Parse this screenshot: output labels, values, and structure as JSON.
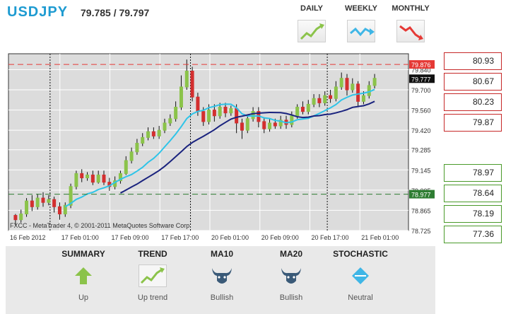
{
  "header": {
    "pair": "USDJPY",
    "price": "79.785 / 79.797"
  },
  "timeframes": [
    {
      "label": "DAILY",
      "icon": "uptrend-chart-icon",
      "color": "#8bc34a"
    },
    {
      "label": "WEEKLY",
      "icon": "sideways-trend-chart-icon",
      "color": "#3fb6e6"
    },
    {
      "label": "MONTHLY",
      "icon": "downtrend-chart-icon",
      "color": "#e53935"
    }
  ],
  "levels": {
    "resistance": [
      "80.93",
      "80.67",
      "80.23",
      "79.87"
    ],
    "support": [
      "78.97",
      "78.64",
      "78.19",
      "77.36"
    ]
  },
  "summary": [
    {
      "title": "SUMMARY",
      "value": "Up",
      "icon": "up-arrow-icon"
    },
    {
      "title": "TREND",
      "value": "Up trend",
      "icon": "uptrend-chart-icon"
    },
    {
      "title": "MA10",
      "value": "Bullish",
      "icon": "bull-icon"
    },
    {
      "title": "MA20",
      "value": "Bullish",
      "icon": "bull-icon"
    },
    {
      "title": "STOCHASTIC",
      "value": "Neutral",
      "icon": "neutral-diamond-icon"
    }
  ],
  "chart_data": {
    "type": "candlestick",
    "watermark": "FXCC - MetaTrader 4, © 2001-2011 MetaQuotes Software Corp.",
    "ylim": [
      78.725,
      79.95
    ],
    "y_ticks": [
      "79.840",
      "79.700",
      "79.560",
      "79.420",
      "79.285",
      "79.145",
      "79.005",
      "78.865",
      "78.725"
    ],
    "x_ticks": [
      "16 Feb 2012",
      "17 Feb 01:00",
      "17 Feb 09:00",
      "17 Feb 17:00",
      "20 Feb 01:00",
      "20 Feb 09:00",
      "20 Feb 17:00",
      "21 Feb 01:00"
    ],
    "resistance_line": {
      "value": 79.876,
      "label": "79.876",
      "color": "#e53935"
    },
    "support_line": {
      "value": 78.977,
      "label": "78.977",
      "color": "#2e7d32"
    },
    "current_price": {
      "value": 79.777,
      "label": "79.777"
    },
    "candles": [
      [
        78.83,
        78.8,
        78.84,
        78.76
      ],
      [
        78.8,
        78.84,
        78.87,
        78.78
      ],
      [
        78.84,
        78.93,
        78.95,
        78.82
      ],
      [
        78.93,
        78.89,
        78.97,
        78.86
      ],
      [
        78.89,
        78.95,
        78.98,
        78.87
      ],
      [
        78.95,
        78.92,
        78.99,
        78.89
      ],
      [
        78.92,
        78.94,
        78.97,
        78.9
      ],
      [
        78.94,
        78.89,
        78.96,
        78.85
      ],
      [
        78.89,
        78.84,
        78.92,
        78.8
      ],
      [
        78.84,
        78.9,
        78.92,
        78.82
      ],
      [
        78.9,
        79.03,
        79.05,
        78.88
      ],
      [
        79.03,
        79.12,
        79.14,
        79.01
      ],
      [
        79.12,
        79.09,
        79.15,
        79.06
      ],
      [
        79.09,
        79.11,
        79.13,
        79.07
      ],
      [
        79.11,
        79.06,
        79.14,
        79.04
      ],
      [
        79.06,
        79.11,
        79.14,
        79.05
      ],
      [
        79.11,
        79.06,
        79.14,
        79.04
      ],
      [
        79.06,
        79.03,
        79.09,
        79.0
      ],
      [
        79.03,
        79.07,
        79.1,
        79.01
      ],
      [
        79.07,
        79.12,
        79.14,
        79.05
      ],
      [
        79.12,
        79.21,
        79.24,
        79.11
      ],
      [
        79.21,
        79.27,
        79.3,
        79.19
      ],
      [
        79.27,
        79.33,
        79.36,
        79.25
      ],
      [
        79.33,
        79.37,
        79.4,
        79.31
      ],
      [
        79.37,
        79.41,
        79.44,
        79.35
      ],
      [
        79.41,
        79.38,
        79.44,
        79.36
      ],
      [
        79.38,
        79.42,
        79.45,
        79.36
      ],
      [
        79.42,
        79.47,
        79.5,
        79.4
      ],
      [
        79.47,
        79.5,
        79.53,
        79.45
      ],
      [
        79.5,
        79.58,
        79.62,
        79.48
      ],
      [
        79.58,
        79.72,
        79.8,
        79.56
      ],
      [
        79.72,
        79.83,
        79.91,
        79.7
      ],
      [
        79.83,
        79.65,
        79.86,
        79.62
      ],
      [
        79.65,
        79.55,
        79.68,
        79.52
      ],
      [
        79.55,
        79.48,
        79.58,
        79.45
      ],
      [
        79.48,
        79.56,
        79.6,
        79.46
      ],
      [
        79.56,
        79.52,
        79.6,
        79.48
      ],
      [
        79.52,
        79.58,
        79.61,
        79.5
      ],
      [
        79.58,
        79.54,
        79.61,
        79.51
      ],
      [
        79.54,
        79.57,
        79.59,
        79.52
      ],
      [
        79.57,
        79.47,
        79.6,
        79.4
      ],
      [
        79.47,
        79.42,
        79.5,
        79.36
      ],
      [
        79.42,
        79.5,
        79.53,
        79.4
      ],
      [
        79.5,
        79.55,
        79.58,
        79.48
      ],
      [
        79.55,
        79.48,
        79.58,
        79.44
      ],
      [
        79.48,
        79.43,
        79.51,
        79.4
      ],
      [
        79.43,
        79.47,
        79.5,
        79.41
      ],
      [
        79.47,
        79.45,
        79.5,
        79.43
      ],
      [
        79.45,
        79.49,
        79.52,
        79.43
      ],
      [
        79.49,
        79.46,
        79.52,
        79.43
      ],
      [
        79.46,
        79.52,
        79.55,
        79.44
      ],
      [
        79.52,
        79.58,
        79.6,
        79.5
      ],
      [
        79.58,
        79.55,
        79.62,
        79.53
      ],
      [
        79.55,
        79.6,
        79.63,
        79.53
      ],
      [
        79.6,
        79.64,
        79.67,
        79.58
      ],
      [
        79.64,
        79.61,
        79.67,
        79.58
      ],
      [
        79.61,
        79.66,
        79.69,
        79.59
      ],
      [
        79.66,
        79.64,
        79.7,
        79.61
      ],
      [
        79.64,
        79.72,
        79.76,
        79.62
      ],
      [
        79.72,
        79.78,
        79.82,
        79.7
      ],
      [
        79.78,
        79.7,
        79.81,
        79.66
      ],
      [
        79.7,
        79.74,
        79.78,
        79.68
      ],
      [
        79.74,
        79.62,
        79.76,
        79.58
      ],
      [
        79.62,
        79.66,
        79.69,
        79.6
      ],
      [
        79.66,
        79.73,
        79.76,
        79.64
      ],
      [
        79.73,
        79.78,
        79.81,
        79.71
      ]
    ],
    "ma_fast_color": "#2ec4e8",
    "ma_slow_color": "#1a237e",
    "bull_color": "#8bc34a",
    "bear_color": "#d32f2f",
    "grid": true
  }
}
